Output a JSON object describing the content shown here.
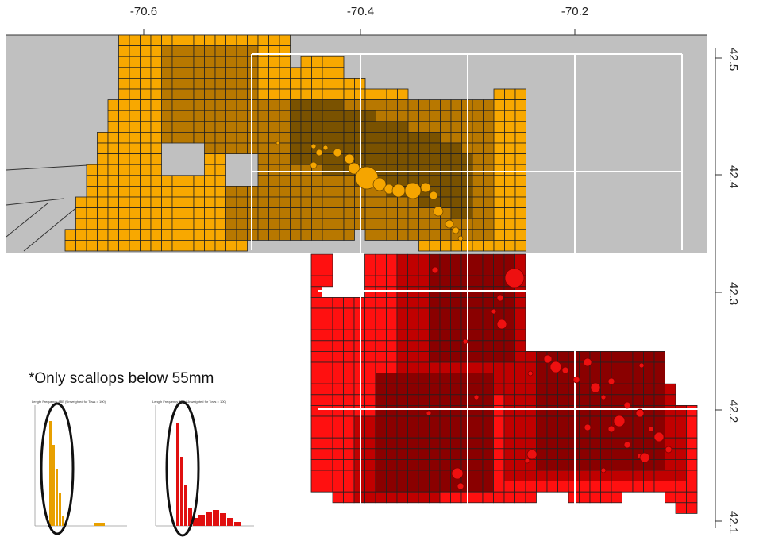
{
  "map": {
    "x_ticks": [
      "-70.6",
      "-70.4",
      "-70.2"
    ],
    "y_ticks": [
      "42.5",
      "42.4",
      "42.3",
      "42.2",
      "42.1"
    ],
    "colors": {
      "upper_region_background": "#c0c0c0",
      "orange_light": "#f8a800",
      "orange_dark": "#b87800",
      "orange_darker": "#7a5200",
      "red_light": "#ff1010",
      "red_dark": "#c00000",
      "red_darker": "#8a0000",
      "grid_line": "#ffffff"
    }
  },
  "note": "*Only scallops below 55mm",
  "histograms": [
    {
      "title": "Length Frequency 4BB (Unweighted for Tows = 100)",
      "color": "#e8a000",
      "shape": "narrow-peak-left"
    },
    {
      "title": "Length Frequency 5BB (Unweighted for Tows = 100)",
      "color": "#e01010",
      "shape": "peak-left-with-tail"
    }
  ]
}
